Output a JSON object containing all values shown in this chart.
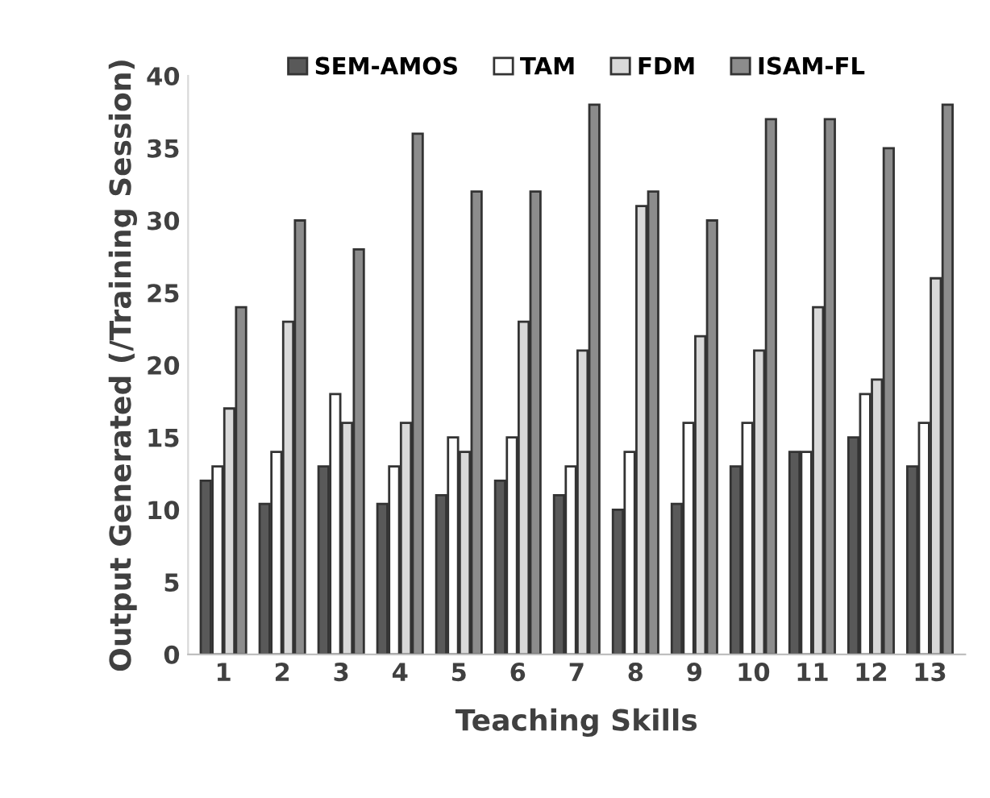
{
  "chart_data": {
    "type": "bar",
    "xlabel": "Teaching Skills",
    "ylabel": "Output Generated (/Training Session)",
    "categories": [
      "1",
      "2",
      "3",
      "4",
      "5",
      "6",
      "7",
      "8",
      "9",
      "10",
      "11",
      "12",
      "13"
    ],
    "series": [
      {
        "name": "SEM-AMOS",
        "color": "#595959",
        "values": [
          12,
          10.4,
          13,
          10.4,
          11,
          12,
          11,
          10,
          10.4,
          13,
          14,
          15,
          13
        ]
      },
      {
        "name": "TAM",
        "color": "#ffffff",
        "values": [
          13,
          14,
          18,
          13,
          15,
          15,
          13,
          14,
          16,
          16,
          14,
          18,
          16
        ]
      },
      {
        "name": "FDM",
        "color": "#d9d9d9",
        "values": [
          17,
          23,
          16,
          16,
          14,
          23,
          21,
          31,
          22,
          21,
          24,
          19,
          26
        ]
      },
      {
        "name": "ISAM-FL",
        "color": "#8c8c8c",
        "values": [
          24,
          30,
          28,
          36,
          32,
          32,
          38,
          32,
          30,
          37,
          37,
          35,
          38
        ]
      }
    ],
    "ylim": [
      0,
      40
    ],
    "yticks": [
      0,
      5,
      10,
      15,
      20,
      25,
      30,
      35,
      40
    ],
    "grid": false,
    "legend": "top"
  }
}
